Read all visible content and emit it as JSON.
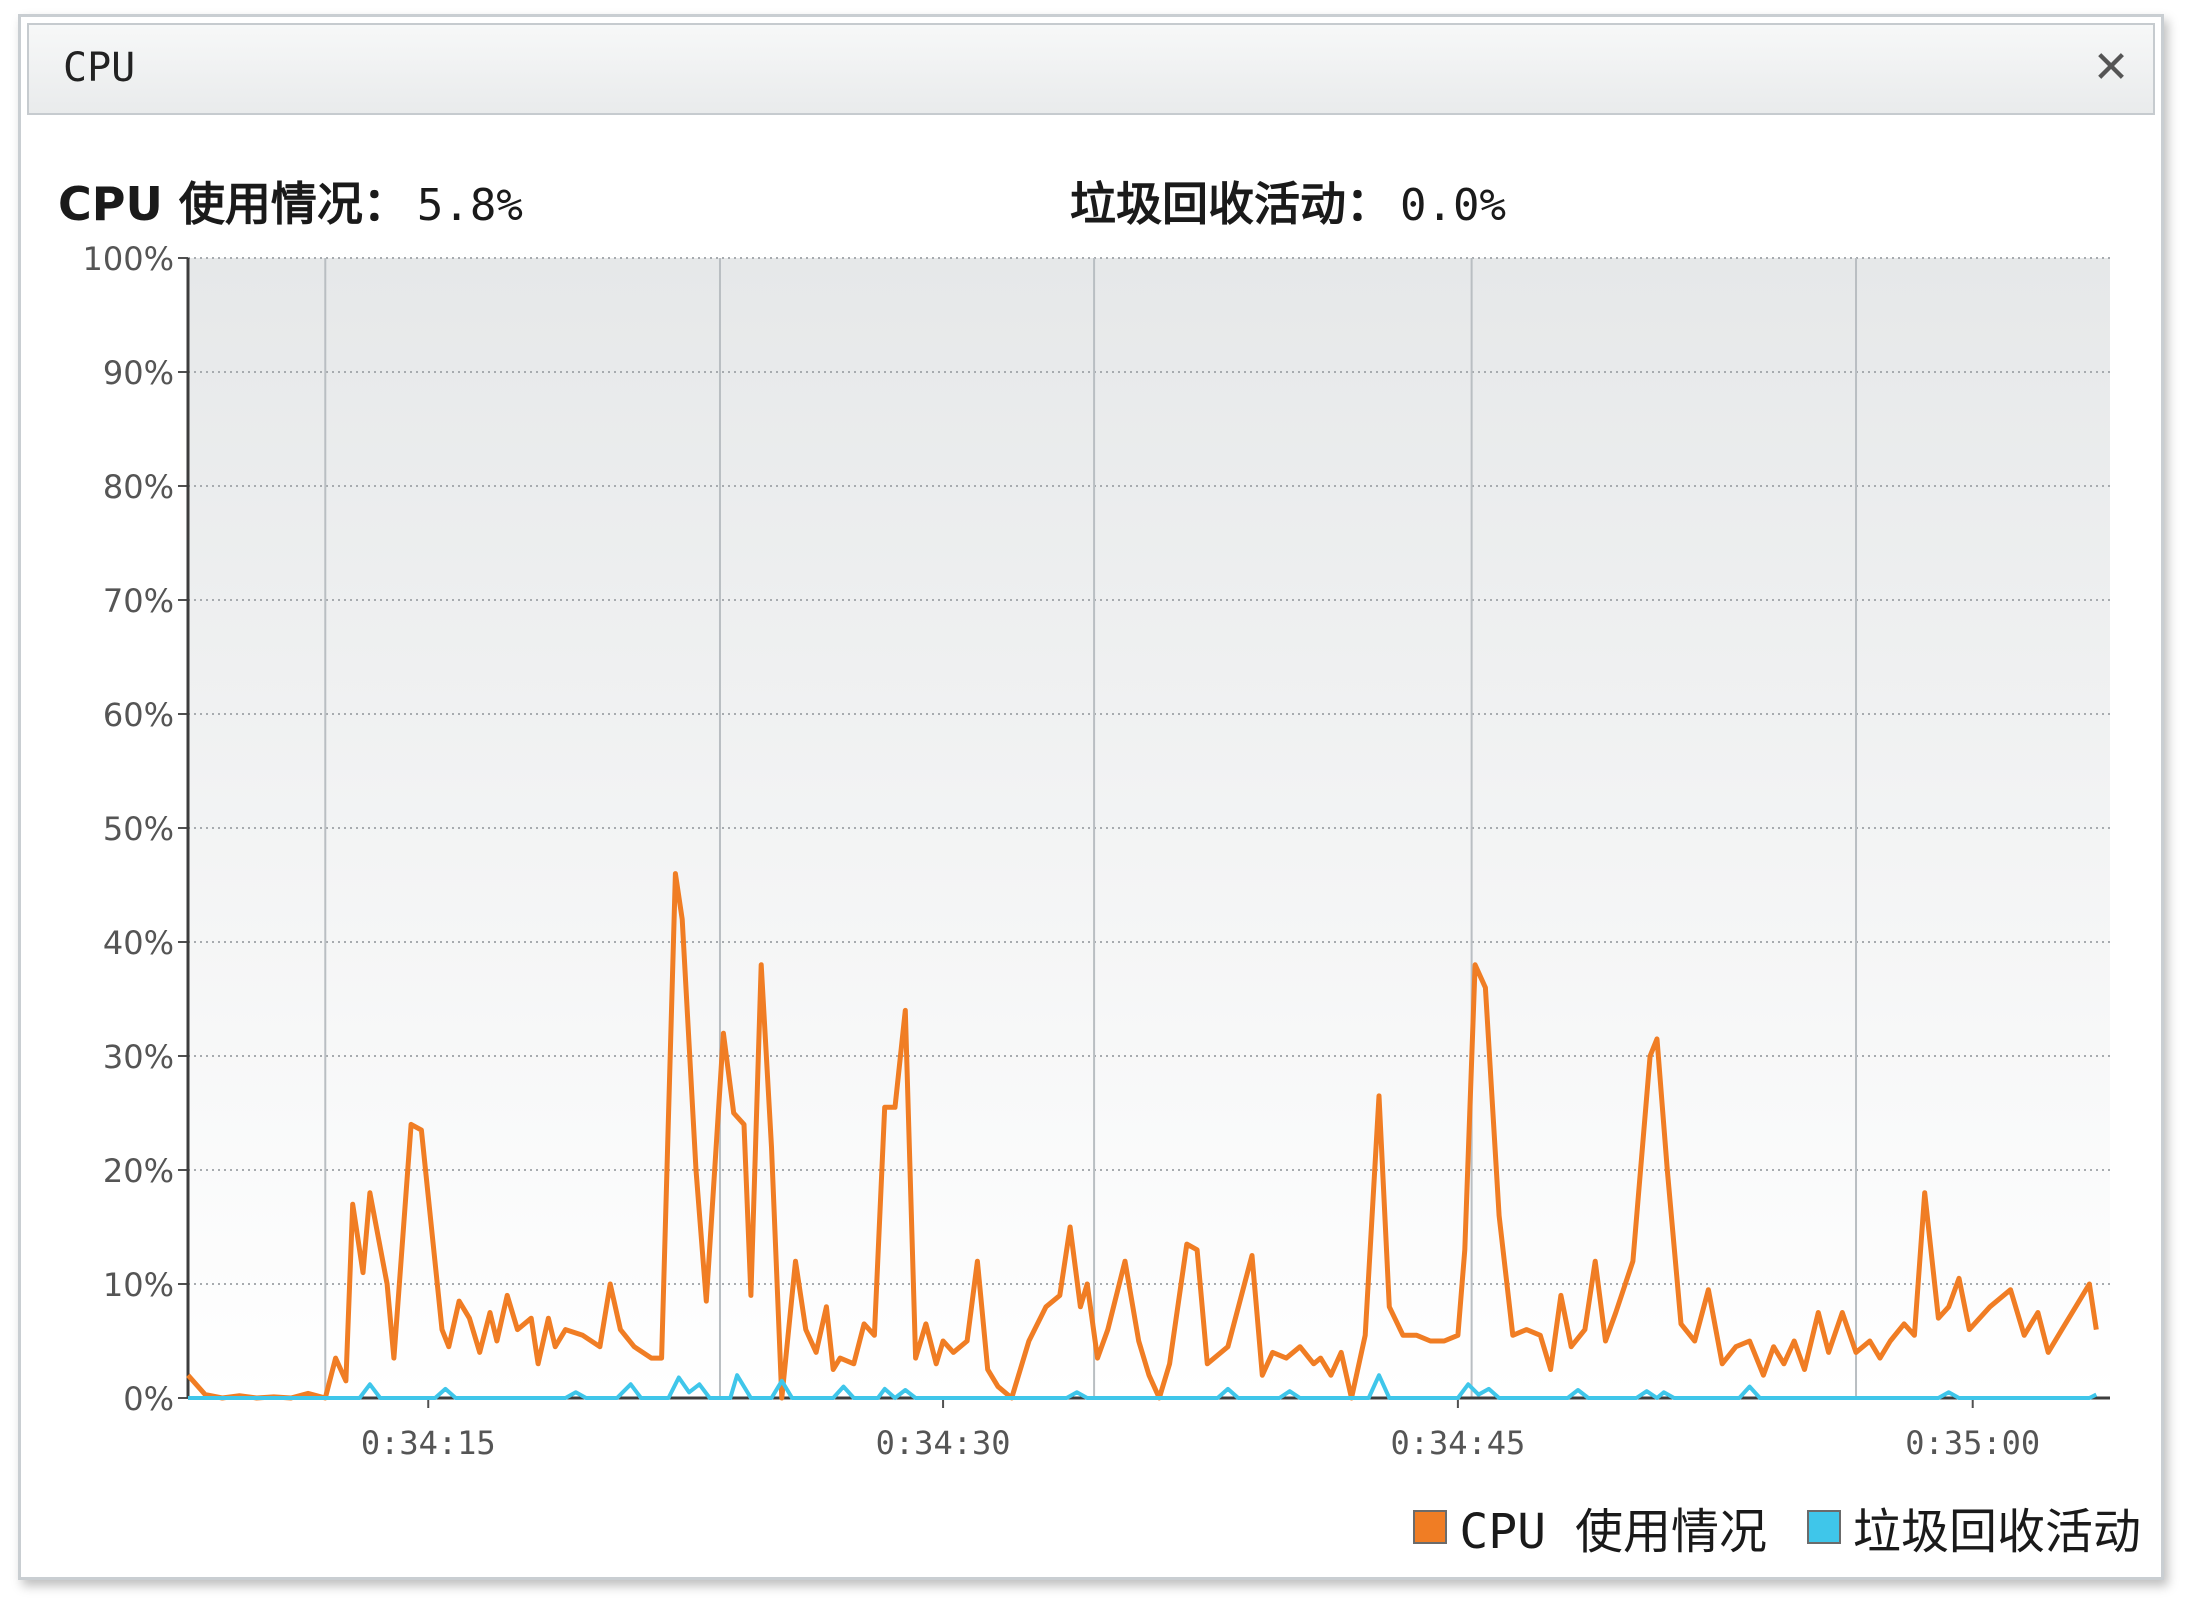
{
  "window": {
    "title": "CPU",
    "close_symbol": "✕"
  },
  "stats": {
    "cpu_label": "CPU 使用情况：",
    "cpu_value": "5.8%",
    "gc_label": "垃圾回收活动：",
    "gc_value": "0.0%"
  },
  "legend": {
    "cpu_label": "CPU 使用情况",
    "gc_label": "垃圾回收活动"
  },
  "colors": {
    "cpu": "#f07d24",
    "gc": "#3fc6ea"
  },
  "chart_data": {
    "type": "line",
    "title": "",
    "xlabel": "",
    "ylabel": "",
    "ylim": [
      0,
      100
    ],
    "xlim": [
      "0:34:08",
      "0:35:04"
    ],
    "y_ticks": [
      "0%",
      "10%",
      "20%",
      "30%",
      "40%",
      "50%",
      "60%",
      "70%",
      "80%",
      "90%",
      "100%"
    ],
    "x_ticks": [
      "0:34:15",
      "0:34:30",
      "0:34:45",
      "0:35:00"
    ],
    "grid": true,
    "legend_position": "bottom-right",
    "series": [
      {
        "name": "CPU 使用情况",
        "points": [
          [
            "0:34:08",
            2
          ],
          [
            "0:34:08.5",
            0.3
          ],
          [
            "0:34:09",
            0
          ],
          [
            "0:34:09.5",
            0.2
          ],
          [
            "0:34:10",
            0
          ],
          [
            "0:34:10.5",
            0.1
          ],
          [
            "0:34:11",
            0
          ],
          [
            "0:34:11.5",
            0.4
          ],
          [
            "0:34:12",
            0
          ],
          [
            "0:34:12.3",
            3.5
          ],
          [
            "0:34:12.6",
            1.5
          ],
          [
            "0:34:12.8",
            17
          ],
          [
            "0:34:13.1",
            11
          ],
          [
            "0:34:13.3",
            18
          ],
          [
            "0:34:13.8",
            10
          ],
          [
            "0:34:14.0",
            3.5
          ],
          [
            "0:34:14.5",
            24
          ],
          [
            "0:34:14.8",
            23.5
          ],
          [
            "0:34:15.4",
            6
          ],
          [
            "0:34:15.6",
            4.5
          ],
          [
            "0:34:15.9",
            8.5
          ],
          [
            "0:34:16.2",
            7
          ],
          [
            "0:34:16.5",
            4
          ],
          [
            "0:34:16.8",
            7.5
          ],
          [
            "0:34:17.0",
            5
          ],
          [
            "0:34:17.3",
            9
          ],
          [
            "0:34:17.6",
            6
          ],
          [
            "0:34:18.0",
            7
          ],
          [
            "0:34:18.2",
            3
          ],
          [
            "0:34:18.5",
            7
          ],
          [
            "0:34:18.7",
            4.5
          ],
          [
            "0:34:19.0",
            6
          ],
          [
            "0:34:19.5",
            5.5
          ],
          [
            "0:34:20.0",
            4.5
          ],
          [
            "0:34:20.3",
            10
          ],
          [
            "0:34:20.6",
            6
          ],
          [
            "0:34:21.0",
            4.5
          ],
          [
            "0:34:21.5",
            3.5
          ],
          [
            "0:34:21.8",
            3.5
          ],
          [
            "0:34:22.2",
            46
          ],
          [
            "0:34:22.4",
            42
          ],
          [
            "0:34:22.8",
            20
          ],
          [
            "0:34:23.1",
            8.5
          ],
          [
            "0:34:23.6",
            32
          ],
          [
            "0:34:23.9",
            25
          ],
          [
            "0:34:24.2",
            24
          ],
          [
            "0:34:24.4",
            9
          ],
          [
            "0:34:24.7",
            38
          ],
          [
            "0:34:25.0",
            22
          ],
          [
            "0:34:25.3",
            0
          ],
          [
            "0:34:25.7",
            12
          ],
          [
            "0:34:26.0",
            6
          ],
          [
            "0:34:26.3",
            4
          ],
          [
            "0:34:26.6",
            8
          ],
          [
            "0:34:26.8",
            2.5
          ],
          [
            "0:34:27.0",
            3.5
          ],
          [
            "0:34:27.4",
            3
          ],
          [
            "0:34:27.7",
            6.5
          ],
          [
            "0:34:28.0",
            5.5
          ],
          [
            "0:34:28.3",
            25.5
          ],
          [
            "0:34:28.6",
            25.5
          ],
          [
            "0:34:28.9",
            34
          ],
          [
            "0:34:29.2",
            3.5
          ],
          [
            "0:34:29.5",
            6.5
          ],
          [
            "0:34:29.8",
            3
          ],
          [
            "0:34:30.0",
            5
          ],
          [
            "0:34:30.3",
            4
          ],
          [
            "0:34:30.7",
            5
          ],
          [
            "0:34:31.0",
            12
          ],
          [
            "0:34:31.3",
            2.5
          ],
          [
            "0:34:31.6",
            1
          ],
          [
            "0:34:32.0",
            0
          ],
          [
            "0:34:32.5",
            5
          ],
          [
            "0:34:33.0",
            8
          ],
          [
            "0:34:33.4",
            9
          ],
          [
            "0:34:33.7",
            15
          ],
          [
            "0:34:34.0",
            8
          ],
          [
            "0:34:34.2",
            10
          ],
          [
            "0:34:34.5",
            3.5
          ],
          [
            "0:34:34.8",
            6
          ],
          [
            "0:34:35.3",
            12
          ],
          [
            "0:34:35.7",
            5
          ],
          [
            "0:34:36.0",
            2
          ],
          [
            "0:34:36.3",
            0
          ],
          [
            "0:34:36.6",
            3
          ],
          [
            "0:34:37.1",
            13.5
          ],
          [
            "0:34:37.4",
            13
          ],
          [
            "0:34:37.7",
            3
          ],
          [
            "0:34:38.3",
            4.5
          ],
          [
            "0:34:39.0",
            12.5
          ],
          [
            "0:34:39.3",
            2
          ],
          [
            "0:34:39.6",
            4
          ],
          [
            "0:34:40.0",
            3.5
          ],
          [
            "0:34:40.4",
            4.5
          ],
          [
            "0:34:40.8",
            3
          ],
          [
            "0:34:41.0",
            3.5
          ],
          [
            "0:34:41.3",
            2
          ],
          [
            "0:34:41.6",
            4
          ],
          [
            "0:34:41.9",
            0
          ],
          [
            "0:34:42.3",
            5.5
          ],
          [
            "0:34:42.7",
            26.5
          ],
          [
            "0:34:43.0",
            8
          ],
          [
            "0:34:43.4",
            5.5
          ],
          [
            "0:34:43.8",
            5.5
          ],
          [
            "0:34:44.2",
            5
          ],
          [
            "0:34:44.6",
            5
          ],
          [
            "0:34:45.0",
            5.5
          ],
          [
            "0:34:45.2",
            13
          ],
          [
            "0:34:45.5",
            38
          ],
          [
            "0:34:45.8",
            36
          ],
          [
            "0:34:46.2",
            16
          ],
          [
            "0:34:46.6",
            5.5
          ],
          [
            "0:34:47.0",
            6
          ],
          [
            "0:34:47.4",
            5.5
          ],
          [
            "0:34:47.7",
            2.5
          ],
          [
            "0:34:48.0",
            9
          ],
          [
            "0:34:48.3",
            4.5
          ],
          [
            "0:34:48.7",
            6
          ],
          [
            "0:34:49.0",
            12
          ],
          [
            "0:34:49.3",
            5
          ],
          [
            "0:34:49.6",
            7.5
          ],
          [
            "0:34:50.1",
            12
          ],
          [
            "0:34:50.6",
            30
          ],
          [
            "0:34:50.8",
            31.5
          ],
          [
            "0:34:51.1",
            20
          ],
          [
            "0:34:51.5",
            6.5
          ],
          [
            "0:34:51.9",
            5
          ],
          [
            "0:34:52.3",
            9.5
          ],
          [
            "0:34:52.7",
            3
          ],
          [
            "0:34:53.1",
            4.5
          ],
          [
            "0:34:53.5",
            5
          ],
          [
            "0:34:53.9",
            2
          ],
          [
            "0:34:54.2",
            4.5
          ],
          [
            "0:34:54.5",
            3
          ],
          [
            "0:34:54.8",
            5
          ],
          [
            "0:34:55.1",
            2.5
          ],
          [
            "0:34:55.5",
            7.5
          ],
          [
            "0:34:55.8",
            4
          ],
          [
            "0:34:56.2",
            7.5
          ],
          [
            "0:34:56.6",
            4
          ],
          [
            "0:34:57.0",
            5
          ],
          [
            "0:34:57.3",
            3.5
          ],
          [
            "0:34:57.6",
            5
          ],
          [
            "0:34:58.0",
            6.5
          ],
          [
            "0:34:58.3",
            5.5
          ],
          [
            "0:34:58.6",
            18
          ],
          [
            "0:34:59.0",
            7
          ],
          [
            "0:34:59.3",
            8
          ],
          [
            "0:34:59.6",
            10.5
          ],
          [
            "0:34:59.9",
            6
          ],
          [
            "0:35:00.5",
            8
          ],
          [
            "0:35:01.1",
            9.5
          ],
          [
            "0:35:01.5",
            5.5
          ],
          [
            "0:35:01.9",
            7.5
          ],
          [
            "0:35:02.2",
            4
          ],
          [
            "0:35:02.6",
            6
          ],
          [
            "0:35:03.0",
            8
          ],
          [
            "0:35:03.4",
            10
          ],
          [
            "0:35:03.6",
            6
          ]
        ]
      },
      {
        "name": "垃圾回收活动",
        "points": [
          [
            "0:34:08",
            0
          ],
          [
            "0:34:13.0",
            0
          ],
          [
            "0:34:13.3",
            1.2
          ],
          [
            "0:34:13.6",
            0
          ],
          [
            "0:34:15.2",
            0
          ],
          [
            "0:34:15.5",
            0.8
          ],
          [
            "0:34:15.8",
            0
          ],
          [
            "0:34:19.0",
            0
          ],
          [
            "0:34:19.3",
            0.5
          ],
          [
            "0:34:19.6",
            0
          ],
          [
            "0:34:20.5",
            0
          ],
          [
            "0:34:20.9",
            1.2
          ],
          [
            "0:34:21.2",
            0
          ],
          [
            "0:34:22.0",
            0
          ],
          [
            "0:34:22.3",
            1.8
          ],
          [
            "0:34:22.6",
            0.5
          ],
          [
            "0:34:22.9",
            1.2
          ],
          [
            "0:34:23.2",
            0
          ],
          [
            "0:34:23.8",
            0
          ],
          [
            "0:34:24.0",
            2
          ],
          [
            "0:34:24.4",
            0
          ],
          [
            "0:34:25.0",
            0
          ],
          [
            "0:34:25.3",
            1.5
          ],
          [
            "0:34:25.6",
            0
          ],
          [
            "0:34:26.8",
            0
          ],
          [
            "0:34:27.1",
            1
          ],
          [
            "0:34:27.4",
            0
          ],
          [
            "0:34:28.1",
            0
          ],
          [
            "0:34:28.3",
            0.8
          ],
          [
            "0:34:28.6",
            0
          ],
          [
            "0:34:28.9",
            0.7
          ],
          [
            "0:34:29.2",
            0
          ],
          [
            "0:34:33.6",
            0
          ],
          [
            "0:34:33.9",
            0.5
          ],
          [
            "0:34:34.2",
            0
          ],
          [
            "0:34:38.0",
            0
          ],
          [
            "0:34:38.3",
            0.8
          ],
          [
            "0:34:38.6",
            0
          ],
          [
            "0:34:39.8",
            0
          ],
          [
            "0:34:40.1",
            0.6
          ],
          [
            "0:34:40.4",
            0
          ],
          [
            "0:34:42.4",
            0
          ],
          [
            "0:34:42.7",
            2
          ],
          [
            "0:34:43.0",
            0
          ],
          [
            "0:34:45.0",
            0
          ],
          [
            "0:34:45.3",
            1.2
          ],
          [
            "0:34:45.6",
            0.3
          ],
          [
            "0:34:45.9",
            0.8
          ],
          [
            "0:34:46.2",
            0
          ],
          [
            "0:34:48.2",
            0
          ],
          [
            "0:34:48.5",
            0.7
          ],
          [
            "0:34:48.8",
            0
          ],
          [
            "0:34:50.2",
            0
          ],
          [
            "0:34:50.5",
            0.6
          ],
          [
            "0:34:50.8",
            0
          ],
          [
            "0:34:51.0",
            0.5
          ],
          [
            "0:34:51.3",
            0
          ],
          [
            "0:34:53.2",
            0
          ],
          [
            "0:34:53.5",
            1
          ],
          [
            "0:34:53.8",
            0
          ],
          [
            "0:34:59.0",
            0
          ],
          [
            "0:34:59.3",
            0.5
          ],
          [
            "0:34:59.6",
            0
          ],
          [
            "0:35:03.4",
            0
          ],
          [
            "0:35:03.6",
            0.3
          ]
        ]
      }
    ]
  }
}
